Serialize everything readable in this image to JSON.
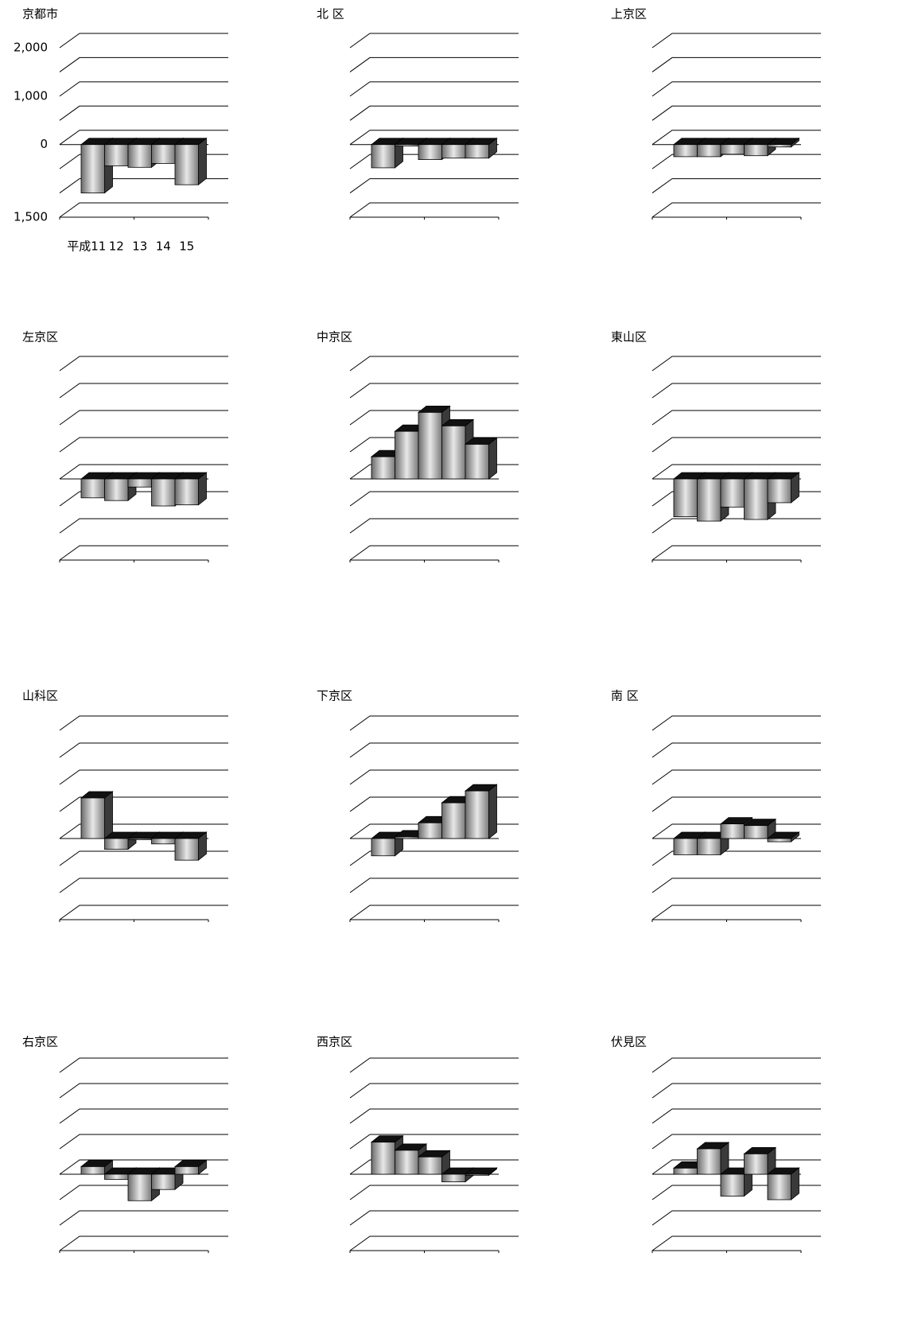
{
  "chart_data": [
    {
      "type": "bar",
      "title": "京都市",
      "categories": [
        "平成11",
        "12",
        "13",
        "14",
        "15"
      ],
      "values": [
        -1000,
        -440,
        -470,
        -390,
        -830
      ],
      "ylim": [
        -1500,
        2000
      ],
      "grid": [
        -1500,
        -1000,
        -500,
        0,
        500,
        1000,
        1500,
        2000
      ],
      "yticks": [
        {
          "value": 2000,
          "label": "2,000"
        },
        {
          "value": 1000,
          "label": "1,000"
        },
        0,
        {
          "value": -1500,
          "label": "1,500"
        }
      ]
    },
    {
      "type": "bar",
      "title": "北 区",
      "values": [
        -480,
        -30,
        -310,
        -280,
        -280
      ],
      "ylim": [
        -1500,
        2000
      ],
      "grid": [
        -1500,
        -1000,
        -500,
        0,
        500,
        1000,
        1500,
        2000
      ]
    },
    {
      "type": "bar",
      "title": "上京区",
      "values": [
        -250,
        -250,
        -200,
        -230,
        -50
      ],
      "ylim": [
        -1500,
        2000
      ],
      "grid": [
        -1500,
        -1000,
        -500,
        0,
        500,
        1000,
        1500,
        2000
      ]
    },
    {
      "type": "bar",
      "title": "左京区",
      "values": [
        -350,
        -400,
        -150,
        -500,
        -480
      ],
      "ylim": [
        -1500,
        2000
      ],
      "grid": [
        -1500,
        -1000,
        -500,
        0,
        500,
        1000,
        1500,
        2000
      ]
    },
    {
      "type": "bar",
      "title": "中京区",
      "values": [
        410,
        880,
        1230,
        980,
        640
      ],
      "ylim": [
        -1500,
        2000
      ],
      "grid": [
        -1500,
        -1000,
        -500,
        0,
        500,
        1000,
        1500,
        2000
      ]
    },
    {
      "type": "bar",
      "title": "東山区",
      "values": [
        -700,
        -780,
        -520,
        -750,
        -440
      ],
      "ylim": [
        -1500,
        2000
      ],
      "grid": [
        -1500,
        -1000,
        -500,
        0,
        500,
        1000,
        1500,
        2000
      ]
    },
    {
      "type": "bar",
      "title": "山科区",
      "values": [
        750,
        -200,
        -20,
        -100,
        -400
      ],
      "ylim": [
        -1500,
        2000
      ],
      "grid": [
        -1500,
        -1000,
        -500,
        0,
        500,
        1000,
        1500,
        2000
      ]
    },
    {
      "type": "bar",
      "title": "下京区",
      "values": [
        -320,
        30,
        290,
        660,
        880
      ],
      "ylim": [
        -1500,
        2000
      ],
      "grid": [
        -1500,
        -1000,
        -500,
        0,
        500,
        1000,
        1500,
        2000
      ]
    },
    {
      "type": "bar",
      "title": "南 区",
      "values": [
        -300,
        -300,
        270,
        240,
        -60
      ],
      "ylim": [
        -1500,
        2000
      ],
      "grid": [
        -1500,
        -1000,
        -500,
        0,
        500,
        1000,
        1500,
        2000
      ]
    },
    {
      "type": "bar",
      "title": "右京区",
      "values": [
        150,
        -100,
        -520,
        -300,
        150
      ],
      "ylim": [
        -1500,
        2000
      ],
      "grid": [
        -1500,
        -1000,
        -500,
        0,
        500,
        1000,
        1500,
        2000
      ]
    },
    {
      "type": "bar",
      "title": "西京区",
      "values": [
        630,
        470,
        340,
        -150,
        -20
      ],
      "ylim": [
        -1500,
        2000
      ],
      "grid": [
        -1500,
        -1000,
        -500,
        0,
        500,
        1000,
        1500,
        2000
      ]
    },
    {
      "type": "bar",
      "title": "伏見区",
      "values": [
        120,
        500,
        -430,
        400,
        -500
      ],
      "ylim": [
        -1500,
        2000
      ],
      "grid": [
        -1500,
        -1000,
        -500,
        0,
        500,
        1000,
        1500,
        2000
      ]
    }
  ]
}
